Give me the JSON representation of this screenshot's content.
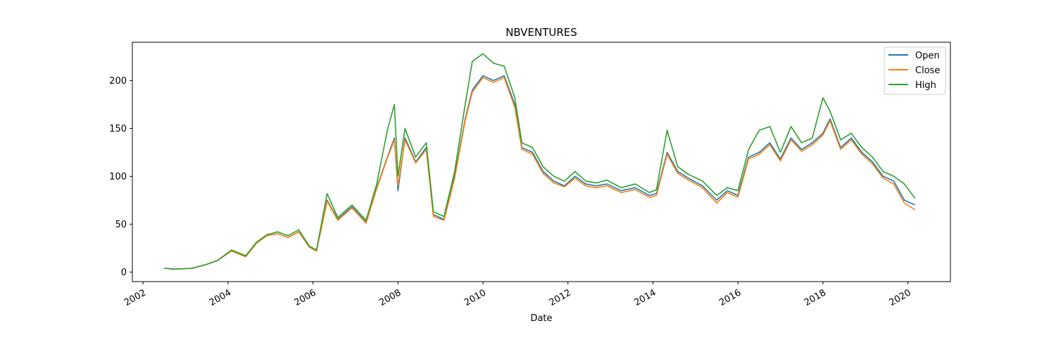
{
  "chart_data": {
    "type": "line",
    "title": "NBVENTURES",
    "xlabel": "Date",
    "ylabel": "",
    "xlim": [
      "2001-10-01",
      "2021-01-01"
    ],
    "ylim": [
      -10,
      240
    ],
    "x_ticks": [
      "2002",
      "2004",
      "2006",
      "2008",
      "2010",
      "2012",
      "2014",
      "2016",
      "2018",
      "2020"
    ],
    "y_ticks": [
      0,
      50,
      100,
      150,
      200
    ],
    "grid": false,
    "legend_position": "top-right",
    "x": [
      "2002-07",
      "2002-10",
      "2003-03",
      "2003-07",
      "2003-10",
      "2004-02",
      "2004-06",
      "2004-09",
      "2004-12",
      "2005-03",
      "2005-06",
      "2005-09",
      "2005-12",
      "2006-02",
      "2006-05",
      "2006-08",
      "2006-12",
      "2007-04",
      "2007-07",
      "2007-10",
      "2007-12",
      "2008-01",
      "2008-03",
      "2008-06",
      "2008-09",
      "2008-11",
      "2009-02",
      "2009-05",
      "2009-08",
      "2009-10",
      "2010-01",
      "2010-04",
      "2010-07",
      "2010-10",
      "2010-12",
      "2011-03",
      "2011-06",
      "2011-09",
      "2011-12",
      "2012-03",
      "2012-06",
      "2012-09",
      "2012-12",
      "2013-04",
      "2013-08",
      "2013-12",
      "2014-02",
      "2014-05",
      "2014-08",
      "2014-11",
      "2015-03",
      "2015-07",
      "2015-10",
      "2016-01",
      "2016-04",
      "2016-07",
      "2016-10",
      "2017-01",
      "2017-04",
      "2017-07",
      "2017-10",
      "2018-01",
      "2018-03",
      "2018-06",
      "2018-09",
      "2018-12",
      "2019-03",
      "2019-06",
      "2019-09",
      "2019-12",
      "2020-03"
    ],
    "series": [
      {
        "name": "Open",
        "color": "#1f77b4",
        "values": [
          4,
          3,
          4,
          8,
          12,
          22,
          16,
          30,
          38,
          40,
          36,
          42,
          26,
          22,
          75,
          55,
          68,
          52,
          88,
          120,
          140,
          85,
          140,
          115,
          130,
          60,
          55,
          100,
          160,
          190,
          205,
          200,
          205,
          175,
          130,
          125,
          105,
          95,
          90,
          100,
          92,
          90,
          92,
          85,
          88,
          80,
          82,
          125,
          105,
          98,
          90,
          75,
          85,
          80,
          120,
          125,
          135,
          118,
          140,
          128,
          135,
          145,
          160,
          130,
          140,
          125,
          115,
          100,
          95,
          75,
          70
        ]
      },
      {
        "name": "Close",
        "color": "#ff7f0e",
        "values": [
          4,
          3,
          4,
          8,
          12,
          22,
          16,
          30,
          38,
          40,
          36,
          42,
          26,
          22,
          74,
          54,
          67,
          51,
          87,
          119,
          138,
          90,
          138,
          114,
          128,
          58,
          54,
          98,
          158,
          188,
          203,
          198,
          203,
          172,
          128,
          123,
          103,
          93,
          89,
          98,
          90,
          88,
          90,
          83,
          86,
          78,
          80,
          123,
          103,
          96,
          88,
          72,
          83,
          78,
          118,
          123,
          133,
          116,
          138,
          126,
          133,
          143,
          158,
          128,
          138,
          123,
          113,
          98,
          92,
          72,
          65
        ]
      },
      {
        "name": "High",
        "color": "#2ca02c",
        "values": [
          4,
          3,
          4,
          8,
          12,
          23,
          17,
          31,
          39,
          42,
          38,
          44,
          27,
          23,
          82,
          57,
          70,
          54,
          92,
          148,
          175,
          100,
          150,
          120,
          135,
          63,
          58,
          105,
          175,
          220,
          228,
          218,
          215,
          182,
          135,
          130,
          110,
          100,
          95,
          105,
          95,
          93,
          96,
          88,
          92,
          83,
          86,
          148,
          110,
          102,
          95,
          80,
          88,
          85,
          128,
          148,
          152,
          125,
          152,
          135,
          140,
          182,
          168,
          138,
          145,
          130,
          120,
          105,
          100,
          92,
          77
        ]
      }
    ]
  }
}
